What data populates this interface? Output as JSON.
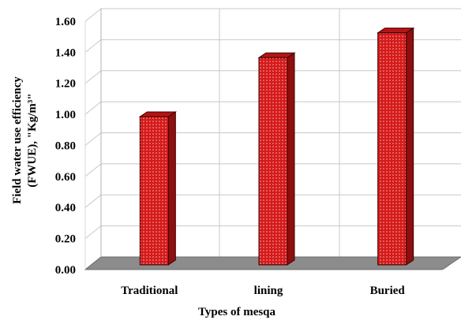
{
  "chart_data": {
    "type": "bar",
    "categories": [
      "Traditional",
      "lining",
      "Buried"
    ],
    "values": [
      0.97,
      1.35,
      1.51
    ],
    "xlabel": "Types of mesqa",
    "ylabel_line1": "Field water use efficiency",
    "ylabel_line2": "(FWUE), \"Kg/m³\"",
    "yticks": [
      "0.00",
      "0.20",
      "0.40",
      "0.60",
      "0.80",
      "1.00",
      "1.20",
      "1.40",
      "1.60"
    ],
    "ylim": [
      0,
      1.6
    ],
    "grid": true,
    "bar_color": "#d51a1a",
    "bar_side_color": "#8e0f0f",
    "bar_top_color": "#b51414",
    "floor_color": "#8c8c8c"
  }
}
